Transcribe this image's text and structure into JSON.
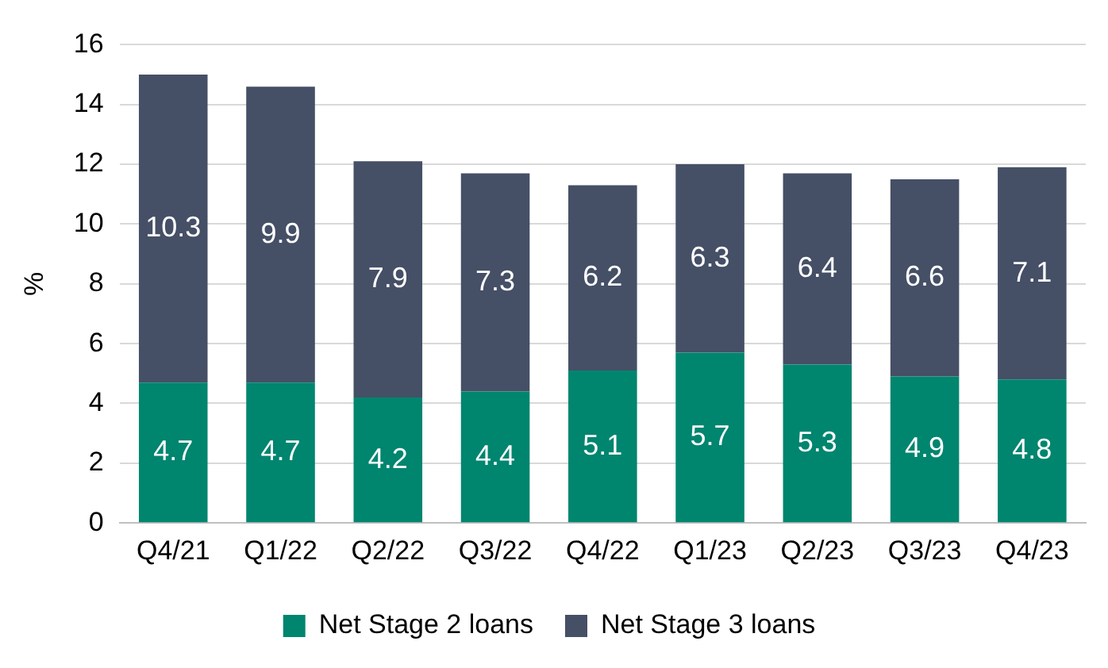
{
  "chart_data": {
    "type": "bar",
    "stacked": true,
    "ylabel": "%",
    "categories": [
      "Q4/21",
      "Q1/22",
      "Q2/22",
      "Q3/22",
      "Q4/22",
      "Q1/23",
      "Q2/23",
      "Q3/23",
      "Q4/23"
    ],
    "series": [
      {
        "name": "Net Stage 2 loans",
        "color": "#00856f",
        "values": [
          4.7,
          4.7,
          4.2,
          4.4,
          5.1,
          5.7,
          5.3,
          4.9,
          4.8
        ]
      },
      {
        "name": "Net Stage 3 loans",
        "color": "#454f66",
        "values": [
          10.3,
          9.9,
          7.9,
          7.3,
          6.2,
          6.3,
          6.4,
          6.6,
          7.1
        ]
      }
    ],
    "ylim": [
      0,
      16
    ],
    "yticks": [
      0,
      2,
      4,
      6,
      8,
      10,
      12,
      14,
      16
    ],
    "grid": "y",
    "legend": "bottom",
    "data_labels": true
  }
}
